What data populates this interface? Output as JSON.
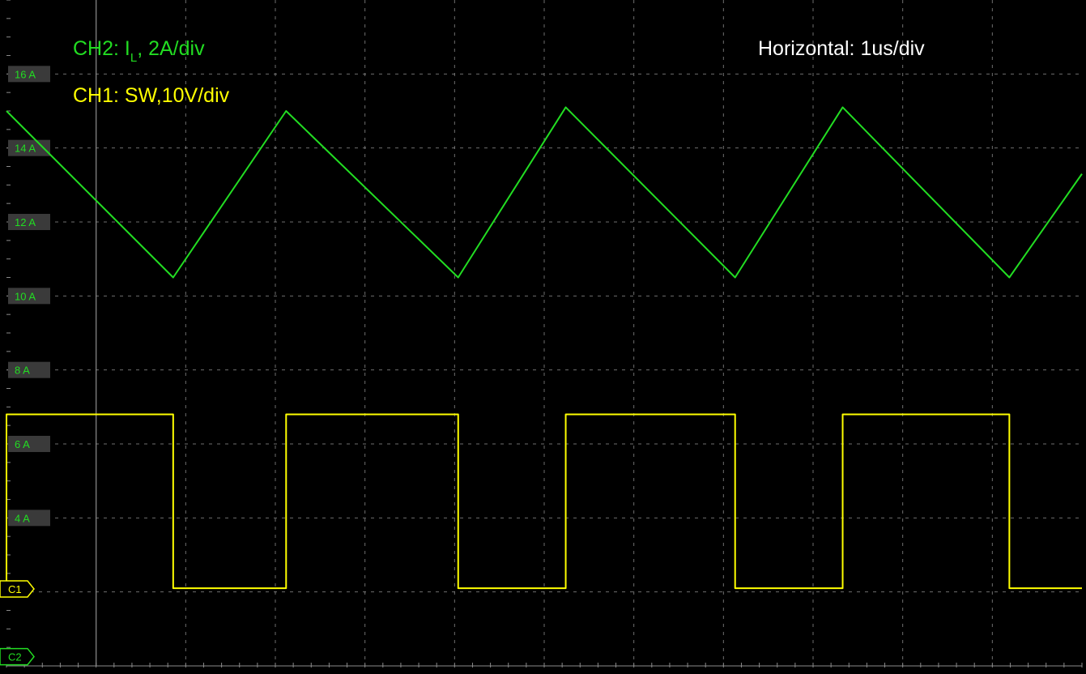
{
  "colors": {
    "background": "#000000",
    "grid": "#8a8a8a",
    "ch2": "#22dd22",
    "ch1": "#ffff00",
    "horizontal_text": "#ffffff",
    "tick_box": "#3a3a3a",
    "tick_text": "#22dd22"
  },
  "annotations": {
    "ch2_prefix": "CH2: I",
    "ch2_subscript": "L",
    "ch2_suffix": ",   2A/div",
    "ch1": "CH1: SW,10V/div",
    "horizontal": "Horizontal: 1us/div"
  },
  "markers": {
    "c1": "C1",
    "c2": "C2"
  },
  "chart_data": {
    "type": "line",
    "title": "",
    "xlabel": "",
    "ylabel": "",
    "x_unit": "us",
    "xlim": [
      0,
      4.0
    ],
    "ylim": [
      0,
      18
    ],
    "y_ticks": [
      {
        "value": 4,
        "label": "4 A"
      },
      {
        "value": 6,
        "label": "6 A"
      },
      {
        "value": 8,
        "label": "8 A"
      },
      {
        "value": 10,
        "label": "10 A"
      },
      {
        "value": 12,
        "label": "12 A"
      },
      {
        "value": 14,
        "label": "14 A"
      },
      {
        "value": 16,
        "label": "16 A"
      }
    ],
    "grid": true,
    "series": [
      {
        "name": "CH2: IL",
        "unit": "A",
        "x": [
          0.0,
          0.62,
          1.04,
          1.68,
          2.08,
          2.71,
          3.11,
          3.73,
          4.0
        ],
        "y": [
          15.0,
          10.5,
          15.0,
          10.5,
          15.1,
          10.5,
          15.1,
          10.5,
          13.3
        ]
      },
      {
        "name": "CH1: SW",
        "unit": "V",
        "x": [
          0.0,
          0.0,
          0.62,
          0.62,
          1.04,
          1.04,
          1.68,
          1.68,
          2.08,
          2.08,
          2.71,
          2.71,
          3.11,
          3.11,
          3.73,
          3.73,
          4.0
        ],
        "y": [
          2.0,
          6.8,
          6.8,
          2.1,
          2.1,
          6.8,
          6.8,
          2.1,
          2.1,
          6.8,
          6.8,
          2.1,
          2.1,
          6.8,
          6.8,
          2.1,
          2.1
        ]
      }
    ]
  }
}
